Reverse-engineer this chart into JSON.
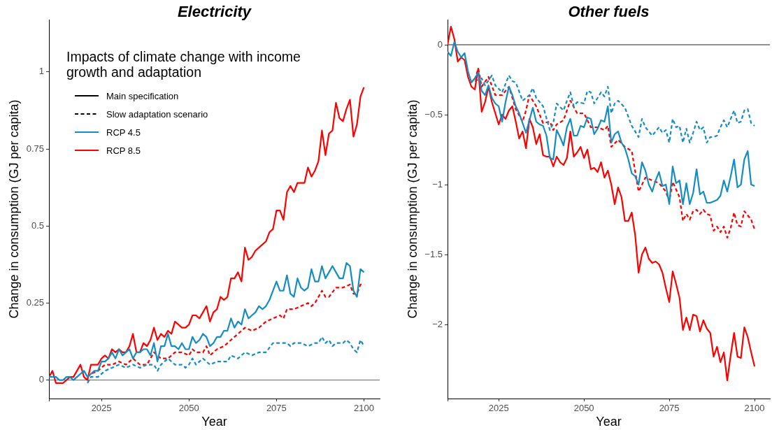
{
  "chart_data": [
    {
      "type": "line",
      "title": "Electricity",
      "xlabel": "Year",
      "ylabel": "Change in consumption (GJ per capita)",
      "legend_title": "Impacts of climate change with income growth and adaptation",
      "legend": "top left",
      "x": [
        2010,
        2011,
        2012,
        2013,
        2014,
        2015,
        2016,
        2017,
        2018,
        2019,
        2020,
        2021,
        2022,
        2023,
        2024,
        2025,
        2026,
        2027,
        2028,
        2029,
        2030,
        2031,
        2032,
        2033,
        2034,
        2035,
        2036,
        2037,
        2038,
        2039,
        2040,
        2041,
        2042,
        2043,
        2044,
        2045,
        2046,
        2047,
        2048,
        2049,
        2050,
        2051,
        2052,
        2053,
        2054,
        2055,
        2056,
        2057,
        2058,
        2059,
        2060,
        2061,
        2062,
        2063,
        2064,
        2065,
        2066,
        2067,
        2068,
        2069,
        2070,
        2071,
        2072,
        2073,
        2074,
        2075,
        2076,
        2077,
        2078,
        2079,
        2080,
        2081,
        2082,
        2083,
        2084,
        2085,
        2086,
        2087,
        2088,
        2089,
        2090,
        2091,
        2092,
        2093,
        2094,
        2095,
        2096,
        2097,
        2098,
        2099,
        2100
      ],
      "xlim": [
        2010,
        2104.5
      ],
      "xticks": [
        {
          "value": 2010,
          "label": null
        },
        2025,
        2050,
        2075,
        2100
      ],
      "ylim": [
        -0.06,
        1.17
      ],
      "yticks": [
        0,
        0.25,
        0.5,
        0.75,
        1
      ],
      "ref_lines": [
        {
          "axis": "y",
          "value": 0,
          "color": "#666666"
        }
      ],
      "series": [
        {
          "name": "Main specification",
          "color": "#000000",
          "line_style": "solid",
          "values": [
            null,
            null,
            null,
            null,
            null,
            null,
            null,
            null,
            null,
            null,
            null,
            null,
            null,
            null,
            null,
            null,
            null,
            null,
            null,
            null,
            null,
            null,
            null,
            null,
            null,
            null,
            null,
            null,
            null,
            null,
            null,
            null,
            null,
            null,
            null,
            null,
            null,
            null,
            null,
            null,
            null,
            null,
            null,
            null,
            null,
            null,
            null,
            null,
            null,
            null,
            null,
            null,
            null,
            null,
            null,
            null,
            null,
            null,
            null,
            null,
            null,
            null,
            null,
            null,
            null,
            null,
            null,
            null,
            null,
            null,
            null,
            null,
            null,
            null,
            null,
            null,
            null,
            null,
            null,
            null,
            null,
            null,
            null,
            null,
            null,
            null,
            null,
            null,
            null,
            null,
            null
          ]
        },
        {
          "name": "Slow adaptation scenario",
          "color": "#000000",
          "line_style": "dashed",
          "values": [
            null,
            null,
            null,
            null,
            null,
            null,
            null,
            null,
            null,
            null,
            null,
            null,
            null,
            null,
            null,
            null,
            null,
            null,
            null,
            null,
            null,
            null,
            null,
            null,
            null,
            null,
            null,
            null,
            null,
            null,
            null,
            null,
            null,
            null,
            null,
            null,
            null,
            null,
            null,
            null,
            null,
            null,
            null,
            null,
            null,
            null,
            null,
            null,
            null,
            null,
            null,
            null,
            null,
            null,
            null,
            null,
            null,
            null,
            null,
            null,
            null,
            null,
            null,
            null,
            null,
            null,
            null,
            null,
            null,
            null,
            null,
            null,
            null,
            null,
            null,
            null,
            null,
            null,
            null,
            null,
            null,
            null,
            null,
            null,
            null,
            null,
            null,
            null,
            null,
            null,
            null
          ]
        },
        {
          "name": "RCP 4.5",
          "color": "#138dc4",
          "line_style": "solid",
          "values": [
            0.01,
            0.01,
            0.01,
            0,
            0,
            0.01,
            0.01,
            0,
            0.01,
            0.02,
            0.03,
            0.01,
            0.02,
            0.03,
            0.03,
            0.06,
            0.06,
            0.07,
            0.09,
            0.07,
            0.1,
            0.08,
            0.09,
            0.1,
            0.07,
            0.09,
            0.09,
            0.1,
            0.1,
            0.08,
            0.12,
            0.06,
            0.11,
            0.11,
            0.15,
            0.11,
            0.11,
            0.1,
            0.12,
            0.1,
            0.1,
            0.14,
            0.12,
            0.13,
            0.15,
            0.14,
            0.11,
            0.12,
            0.14,
            0.14,
            0.16,
            0.16,
            0.2,
            0.17,
            0.19,
            0.18,
            0.23,
            0.2,
            0.21,
            0.22,
            0.24,
            0.23,
            0.24,
            0.26,
            0.29,
            0.32,
            0.29,
            0.29,
            0.34,
            0.28,
            0.27,
            0.33,
            0.3,
            0.29,
            0.3,
            0.36,
            0.32,
            0.32,
            0.37,
            0.33,
            0.35,
            0.37,
            0.35,
            0.33,
            0.33,
            0.38,
            0.37,
            0.29,
            0.27,
            0.36,
            0.35
          ]
        },
        {
          "name": "RCP 8.5",
          "color": "#ff0000",
          "line_style": "solid",
          "values": [
            0.01,
            0.03,
            -0.01,
            -0.01,
            -0.01,
            0,
            0.01,
            0.01,
            0.03,
            0.05,
            0.01,
            0,
            0.05,
            0.05,
            0.05,
            0.07,
            0.08,
            0.07,
            0.1,
            0.09,
            0.1,
            0.09,
            0.09,
            0.11,
            0.15,
            0.09,
            0.09,
            0.12,
            0.11,
            0.13,
            0.17,
            0.13,
            0.15,
            0.14,
            0.16,
            0.15,
            0.19,
            0.18,
            0.17,
            0.17,
            0.18,
            0.21,
            0.21,
            0.2,
            0.22,
            0.24,
            0.19,
            0.22,
            0.23,
            0.27,
            0.26,
            0.27,
            0.33,
            0.33,
            0.35,
            0.32,
            0.43,
            0.39,
            0.4,
            0.42,
            0.43,
            0.44,
            0.45,
            0.48,
            0.49,
            0.55,
            0.55,
            0.52,
            0.61,
            0.63,
            0.61,
            0.64,
            0.64,
            0.64,
            0.69,
            0.66,
            0.68,
            0.71,
            0.81,
            0.73,
            0.8,
            0.81,
            0.9,
            0.85,
            0.84,
            0.88,
            0.91,
            0.79,
            0.83,
            0.92,
            0.95
          ]
        },
        {
          "color": "#138dc4",
          "line_style": "dashed",
          "x": [
            2021,
            2022,
            2024,
            2026,
            2028,
            2030,
            2032,
            2034,
            2036,
            2038,
            2040,
            2041,
            2042,
            2044,
            2046,
            2048,
            2049,
            2050,
            2051,
            2052,
            2054,
            2056,
            2058,
            2060,
            2061,
            2062,
            2064,
            2066,
            2068,
            2070,
            2072,
            2074,
            2076,
            2078,
            2079,
            2080,
            2082,
            2084,
            2086,
            2087,
            2088,
            2089,
            2090,
            2091,
            2092,
            2094,
            2095,
            2096,
            2097,
            2098,
            2099,
            2100
          ],
          "values": [
            -0.01,
            0.01,
            0.01,
            0.03,
            0.04,
            0.05,
            0.04,
            0.05,
            0.04,
            0.05,
            0.05,
            0.03,
            0.05,
            0.07,
            0.05,
            0.05,
            0.04,
            0.05,
            0.07,
            0.05,
            0.07,
            0.05,
            0.06,
            0.06,
            0.06,
            0.08,
            0.07,
            0.09,
            0.08,
            0.09,
            0.09,
            0.12,
            0.12,
            0.12,
            0.11,
            0.12,
            0.12,
            0.11,
            0.12,
            0.12,
            0.14,
            0.12,
            0.13,
            0.11,
            0.12,
            0.12,
            0.13,
            0.12,
            0.1,
            0.09,
            0.13,
            0.11
          ]
        },
        {
          "color": "#ff0000",
          "line_style": "dashed",
          "x": [
            2021,
            2022,
            2024,
            2026,
            2028,
            2030,
            2032,
            2034,
            2036,
            2038,
            2040,
            2042,
            2044,
            2046,
            2048,
            2050,
            2051,
            2052,
            2054,
            2055,
            2056,
            2058,
            2060,
            2062,
            2064,
            2066,
            2068,
            2070,
            2072,
            2074,
            2076,
            2077,
            2078,
            2080,
            2082,
            2084,
            2085,
            2086,
            2088,
            2089,
            2090,
            2092,
            2094,
            2096,
            2097,
            2098,
            2099,
            2100
          ],
          "values": [
            0.01,
            0.02,
            0.03,
            0.05,
            0.05,
            0.06,
            0.05,
            0.07,
            0.05,
            0.05,
            0.09,
            0.07,
            0.07,
            0.09,
            0.09,
            0.08,
            0.1,
            0.09,
            0.09,
            0.11,
            0.08,
            0.1,
            0.11,
            0.13,
            0.15,
            0.17,
            0.16,
            0.17,
            0.19,
            0.2,
            0.21,
            0.2,
            0.23,
            0.23,
            0.24,
            0.25,
            0.24,
            0.25,
            0.29,
            0.27,
            0.27,
            0.3,
            0.3,
            0.31,
            0.28,
            0.28,
            0.31,
            0.31
          ]
        }
      ]
    },
    {
      "type": "line",
      "title": "Other fuels",
      "xlabel": "Year",
      "ylabel": "Change in consumption (GJ per capita)",
      "x": [
        2010,
        2011,
        2012,
        2013,
        2014,
        2015,
        2016,
        2017,
        2018,
        2019,
        2020,
        2021,
        2022,
        2023,
        2024,
        2025,
        2026,
        2027,
        2028,
        2029,
        2030,
        2031,
        2032,
        2033,
        2034,
        2035,
        2036,
        2037,
        2038,
        2039,
        2040,
        2041,
        2042,
        2043,
        2044,
        2045,
        2046,
        2047,
        2048,
        2049,
        2050,
        2051,
        2052,
        2053,
        2054,
        2055,
        2056,
        2057,
        2058,
        2059,
        2060,
        2061,
        2062,
        2063,
        2064,
        2065,
        2066,
        2067,
        2068,
        2069,
        2070,
        2071,
        2072,
        2073,
        2074,
        2075,
        2076,
        2077,
        2078,
        2079,
        2080,
        2081,
        2082,
        2083,
        2084,
        2085,
        2086,
        2087,
        2088,
        2089,
        2090,
        2091,
        2092,
        2093,
        2094,
        2095,
        2096,
        2097,
        2098,
        2099,
        2100
      ],
      "xlim": [
        2010,
        2104.5
      ],
      "xticks": [
        {
          "value": 2010,
          "label": null
        },
        2025,
        2050,
        2075,
        2100
      ],
      "ylim": [
        -2.53,
        0.18
      ],
      "yticks": [
        {
          "value": -2,
          "label": "−2"
        },
        {
          "value": -1.5,
          "label": "−1.5"
        },
        {
          "value": -1,
          "label": "−1"
        },
        {
          "value": -0.5,
          "label": "−0.5"
        },
        0
      ],
      "ref_lines": [
        {
          "axis": "y",
          "value": 0,
          "color": "#222222"
        }
      ],
      "series": [
        {
          "color": "#138dc4",
          "line_style": "solid",
          "values": [
            -0.05,
            -0.08,
            0.02,
            -0.05,
            -0.09,
            -0.06,
            -0.19,
            -0.27,
            -0.24,
            -0.2,
            -0.33,
            -0.36,
            -0.29,
            -0.38,
            -0.42,
            -0.44,
            -0.55,
            -0.41,
            -0.3,
            -0.36,
            -0.44,
            -0.49,
            -0.56,
            -0.63,
            -0.54,
            -0.45,
            -0.55,
            -0.57,
            -0.58,
            -0.65,
            -0.81,
            -0.82,
            -0.61,
            -0.66,
            -0.72,
            -0.59,
            -0.53,
            -0.65,
            -0.65,
            -0.58,
            -0.59,
            -0.52,
            -0.53,
            -0.64,
            -0.6,
            -0.54,
            -0.55,
            -0.44,
            -0.7,
            -0.64,
            -0.62,
            -0.7,
            -0.74,
            -0.82,
            -0.92,
            -0.94,
            -1.0,
            -0.84,
            -0.9,
            -1.0,
            -1.05,
            -0.97,
            -0.91,
            -1.01,
            -1.0,
            -1.14,
            -0.87,
            -0.99,
            -0.97,
            -1.14,
            -0.99,
            -1.14,
            -1.06,
            -0.89,
            -1.07,
            -1.05,
            -1.13,
            -1.13,
            -1.12,
            -1.11,
            -1.08,
            -0.97,
            -1.05,
            -0.94,
            -0.82,
            -1.02,
            -1.0,
            -0.82,
            -0.76,
            -1.0,
            -1.01
          ]
        },
        {
          "color": "#ff0000",
          "line_style": "solid",
          "values": [
            0,
            0.13,
            0.04,
            -0.12,
            -0.09,
            -0.11,
            -0.23,
            -0.3,
            -0.32,
            -0.17,
            -0.48,
            -0.41,
            -0.3,
            -0.41,
            -0.49,
            -0.57,
            -0.5,
            -0.53,
            -0.47,
            -0.44,
            -0.55,
            -0.67,
            -0.62,
            -0.74,
            -0.53,
            -0.59,
            -0.71,
            -0.64,
            -0.79,
            -0.8,
            -0.8,
            -0.87,
            -0.8,
            -0.84,
            -0.86,
            -0.81,
            -0.62,
            -0.8,
            -0.77,
            -0.73,
            -0.81,
            -0.75,
            -0.89,
            -0.88,
            -0.91,
            -0.84,
            -0.95,
            -0.9,
            -1.0,
            -1.14,
            -1.02,
            -1.09,
            -1.26,
            -1.26,
            -1.2,
            -1.36,
            -1.63,
            -1.5,
            -1.45,
            -1.53,
            -1.56,
            -1.55,
            -1.57,
            -1.63,
            -1.74,
            -1.84,
            -1.62,
            -1.71,
            -1.81,
            -2.04,
            -1.95,
            -2.04,
            -1.93,
            -1.94,
            -2.05,
            -1.97,
            -2.03,
            -2.06,
            -2.23,
            -2.16,
            -2.27,
            -2.2,
            -2.4,
            -2.22,
            -2.06,
            -2.23,
            -2.24,
            -2.02,
            -2.09,
            -2.2,
            -2.3
          ]
        },
        {
          "color": "#138dc4",
          "line_style": "dashed",
          "x": [
            2018,
            2020,
            2021,
            2023,
            2024,
            2026,
            2028,
            2029,
            2030,
            2032,
            2034,
            2035,
            2036,
            2038,
            2040,
            2041,
            2042,
            2044,
            2045,
            2046,
            2047,
            2048,
            2050,
            2051,
            2052,
            2053,
            2054,
            2055,
            2056,
            2057,
            2058,
            2059,
            2060,
            2062,
            2064,
            2066,
            2067,
            2068,
            2070,
            2072,
            2073,
            2074,
            2075,
            2076,
            2077,
            2078,
            2079,
            2080,
            2081,
            2082,
            2083,
            2084,
            2085,
            2086,
            2087,
            2088,
            2089,
            2090,
            2091,
            2092,
            2093,
            2094,
            2095,
            2096,
            2097,
            2098,
            2099,
            2100
          ],
          "values": [
            -0.26,
            -0.24,
            -0.29,
            -0.22,
            -0.29,
            -0.34,
            -0.22,
            -0.26,
            -0.27,
            -0.4,
            -0.36,
            -0.31,
            -0.38,
            -0.44,
            -0.61,
            -0.56,
            -0.42,
            -0.47,
            -0.4,
            -0.34,
            -0.44,
            -0.41,
            -0.42,
            -0.33,
            -0.34,
            -0.42,
            -0.38,
            -0.34,
            -0.37,
            -0.3,
            -0.49,
            -0.42,
            -0.4,
            -0.45,
            -0.58,
            -0.66,
            -0.53,
            -0.59,
            -0.65,
            -0.59,
            -0.63,
            -0.61,
            -0.7,
            -0.53,
            -0.59,
            -0.58,
            -0.7,
            -0.6,
            -0.7,
            -0.63,
            -0.55,
            -0.61,
            -0.59,
            -0.7,
            -0.66,
            -0.66,
            -0.65,
            -0.59,
            -0.54,
            -0.59,
            -0.53,
            -0.47,
            -0.56,
            -0.55,
            -0.47,
            -0.46,
            -0.56,
            -0.58
          ]
        },
        {
          "color": "#ff0000",
          "line_style": "dashed",
          "x": [
            2018,
            2019,
            2020,
            2022,
            2024,
            2026,
            2028,
            2030,
            2032,
            2033,
            2034,
            2036,
            2038,
            2040,
            2041,
            2042,
            2044,
            2046,
            2048,
            2050,
            2052,
            2054,
            2056,
            2057,
            2058,
            2060,
            2062,
            2064,
            2066,
            2068,
            2070,
            2072,
            2074,
            2075,
            2076,
            2078,
            2079,
            2080,
            2081,
            2082,
            2083,
            2084,
            2085,
            2086,
            2087,
            2088,
            2089,
            2090,
            2091,
            2092,
            2093,
            2094,
            2095,
            2096,
            2097,
            2098,
            2099,
            2100
          ],
          "values": [
            -0.25,
            -0.17,
            -0.3,
            -0.23,
            -0.36,
            -0.36,
            -0.3,
            -0.46,
            -0.55,
            -0.47,
            -0.36,
            -0.44,
            -0.56,
            -0.55,
            -0.61,
            -0.57,
            -0.54,
            -0.4,
            -0.49,
            -0.49,
            -0.59,
            -0.59,
            -0.61,
            -0.58,
            -0.73,
            -0.68,
            -0.73,
            -0.76,
            -1.05,
            -0.95,
            -0.97,
            -0.99,
            -1.05,
            -1.12,
            -0.98,
            -1.09,
            -1.26,
            -1.21,
            -1.25,
            -1.19,
            -1.18,
            -1.21,
            -1.18,
            -1.21,
            -1.22,
            -1.33,
            -1.3,
            -1.34,
            -1.3,
            -1.38,
            -1.31,
            -1.2,
            -1.29,
            -1.3,
            -1.19,
            -1.22,
            -1.25,
            -1.32
          ]
        }
      ]
    }
  ]
}
